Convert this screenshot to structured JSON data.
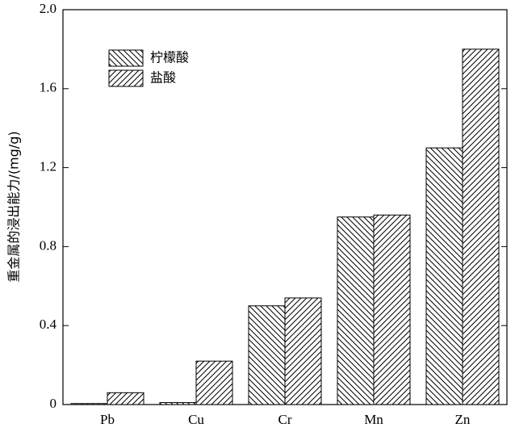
{
  "chart_data": {
    "type": "bar",
    "ylabel": "重金属的浸出能力/(mg/g)",
    "categories": [
      "Pb",
      "Cu",
      "Cr",
      "Mn",
      "Zn"
    ],
    "series": [
      {
        "name": "柠檬酸",
        "color": "#000000",
        "hatch": "\\",
        "values": [
          0.005,
          0.01,
          0.5,
          0.95,
          1.3
        ]
      },
      {
        "name": "盐酸",
        "color": "#000000",
        "hatch": "/",
        "values": [
          0.06,
          0.22,
          0.54,
          0.96,
          1.8
        ]
      }
    ],
    "ylim": [
      0,
      2
    ],
    "yticks": [
      0,
      0.4,
      0.8,
      1.2,
      1.6,
      {
        "value": 2,
        "label": "2.0"
      }
    ],
    "legend": "upper left"
  }
}
